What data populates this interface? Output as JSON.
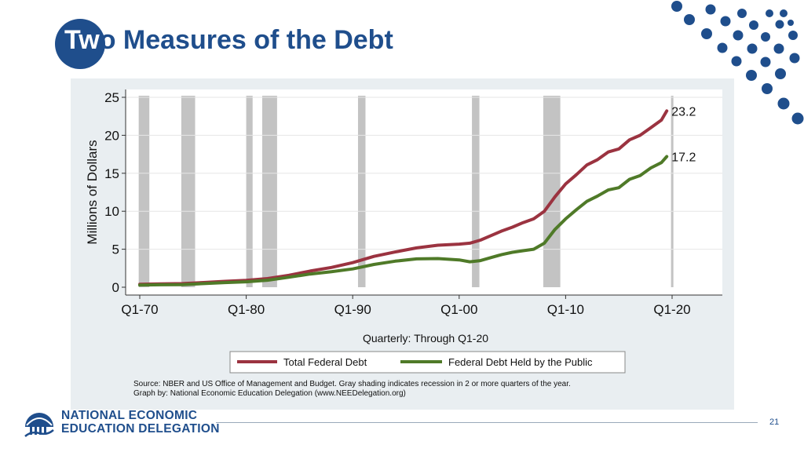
{
  "slide": {
    "title_first": "Tw",
    "title_rest": "o Measures of the Debt",
    "page_number": "21"
  },
  "logo": {
    "line1": "NATIONAL ECONOMIC",
    "line2": "EDUCATION DELEGATION"
  },
  "colors": {
    "brand": "#1f4e8c",
    "total_debt": "#9b3340",
    "public_debt": "#4f7a28",
    "recession": "#c3c3c3"
  },
  "chart_data": {
    "type": "line",
    "title": "",
    "xlabel": "Quarterly: Through Q1-20",
    "ylabel": "Millions of Dollars",
    "xlim": [
      1969.75,
      2019.6
    ],
    "ylim": [
      0,
      25
    ],
    "x_ticks": [
      1970,
      1980,
      1990,
      2000,
      2010,
      2020
    ],
    "x_tick_labels": [
      "Q1-70",
      "Q1-80",
      "Q1-90",
      "Q1-00",
      "Q1-10",
      "Q1-20"
    ],
    "y_ticks": [
      0,
      5,
      10,
      15,
      20,
      25
    ],
    "y_tick_labels": [
      "0",
      "5",
      "10",
      "15",
      "20",
      "25"
    ],
    "grid": true,
    "legend_position": "bottom",
    "recessions": [
      [
        1969.9,
        1970.9
      ],
      [
        1973.9,
        1975.2
      ],
      [
        1980.0,
        1980.6
      ],
      [
        1981.5,
        1982.9
      ],
      [
        1990.5,
        1991.2
      ],
      [
        2001.2,
        2001.9
      ],
      [
        2007.9,
        2009.5
      ],
      [
        2019.9,
        2020.1
      ]
    ],
    "series": [
      {
        "name": "Total Federal Debt",
        "points": [
          [
            1970,
            0.38
          ],
          [
            1972,
            0.43
          ],
          [
            1974,
            0.48
          ],
          [
            1976,
            0.62
          ],
          [
            1978,
            0.77
          ],
          [
            1980,
            0.91
          ],
          [
            1982,
            1.14
          ],
          [
            1984,
            1.57
          ],
          [
            1986,
            2.13
          ],
          [
            1988,
            2.6
          ],
          [
            1990,
            3.23
          ],
          [
            1992,
            4.06
          ],
          [
            1994,
            4.64
          ],
          [
            1996,
            5.18
          ],
          [
            1998,
            5.53
          ],
          [
            2000,
            5.67
          ],
          [
            2001,
            5.8
          ],
          [
            2002,
            6.2
          ],
          [
            2003,
            6.8
          ],
          [
            2004,
            7.4
          ],
          [
            2005,
            7.9
          ],
          [
            2006,
            8.5
          ],
          [
            2007,
            9.0
          ],
          [
            2008,
            10.0
          ],
          [
            2009,
            11.9
          ],
          [
            2010,
            13.6
          ],
          [
            2011,
            14.8
          ],
          [
            2012,
            16.1
          ],
          [
            2013,
            16.8
          ],
          [
            2014,
            17.8
          ],
          [
            2015,
            18.2
          ],
          [
            2016,
            19.4
          ],
          [
            2017,
            20.0
          ],
          [
            2018,
            21.0
          ],
          [
            2019,
            22.0
          ],
          [
            2019.5,
            23.2
          ]
        ],
        "end_label": "23.2"
      },
      {
        "name": "Federal Debt Held by the Public",
        "points": [
          [
            1970,
            0.28
          ],
          [
            1972,
            0.32
          ],
          [
            1974,
            0.34
          ],
          [
            1976,
            0.48
          ],
          [
            1978,
            0.61
          ],
          [
            1980,
            0.71
          ],
          [
            1982,
            0.92
          ],
          [
            1984,
            1.31
          ],
          [
            1986,
            1.74
          ],
          [
            1988,
            2.05
          ],
          [
            1990,
            2.41
          ],
          [
            1992,
            3.0
          ],
          [
            1994,
            3.43
          ],
          [
            1996,
            3.73
          ],
          [
            1998,
            3.77
          ],
          [
            2000,
            3.6
          ],
          [
            2001,
            3.35
          ],
          [
            2002,
            3.5
          ],
          [
            2003,
            3.9
          ],
          [
            2004,
            4.3
          ],
          [
            2005,
            4.6
          ],
          [
            2006,
            4.8
          ],
          [
            2007,
            5.0
          ],
          [
            2008,
            5.8
          ],
          [
            2009,
            7.6
          ],
          [
            2010,
            9.0
          ],
          [
            2011,
            10.2
          ],
          [
            2012,
            11.3
          ],
          [
            2013,
            12.0
          ],
          [
            2014,
            12.8
          ],
          [
            2015,
            13.1
          ],
          [
            2016,
            14.2
          ],
          [
            2017,
            14.7
          ],
          [
            2018,
            15.7
          ],
          [
            2019,
            16.4
          ],
          [
            2019.5,
            17.2
          ]
        ],
        "end_label": "17.2"
      }
    ],
    "source_note_line1": "Source: NBER and US Office of Management and Budget. Gray shading indicates recession in 2 or more quarters of the year.",
    "source_note_line2": "Graph by: National Economic Education Delegation (www.NEEDelegation.org)"
  }
}
